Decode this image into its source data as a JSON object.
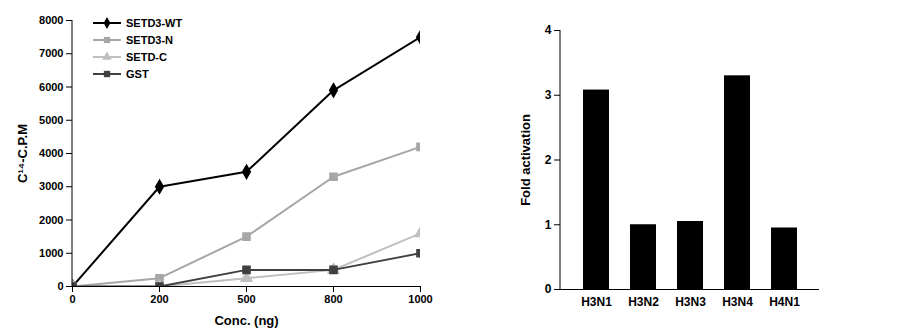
{
  "chart_data": [
    {
      "type": "line",
      "x_label": "Conc. (ng)",
      "y_label": "C¹⁴-C.P.M",
      "categories": [
        0,
        200,
        500,
        800,
        1000
      ],
      "series": [
        {
          "name": "SETD3-WT",
          "color": "#000000",
          "marker": "diamond",
          "values": [
            0,
            3000,
            3450,
            5900,
            7500
          ]
        },
        {
          "name": "SETD3-N",
          "color": "#a6a6a6",
          "marker": "square",
          "values": [
            0,
            250,
            1500,
            3300,
            4200
          ]
        },
        {
          "name": "SETD-C",
          "color": "#bfbfbf",
          "marker": "triangle",
          "values": [
            0,
            0,
            250,
            500,
            1600
          ]
        },
        {
          "name": "GST",
          "color": "#404040",
          "marker": "square",
          "values": [
            0,
            0,
            500,
            500,
            1000
          ]
        }
      ],
      "ylim": [
        0,
        8000
      ],
      "yticks": [
        0,
        1000,
        2000,
        3000,
        4000,
        5000,
        6000,
        7000,
        8000
      ],
      "legend": "top-left",
      "grid": false
    },
    {
      "type": "bar",
      "y_label": "Fold activation",
      "categories": [
        "H3N1",
        "H3N2",
        "H3N3",
        "H3N4",
        "H4N1"
      ],
      "values": [
        3.08,
        1.0,
        1.05,
        3.3,
        0.95
      ],
      "color": "#000000",
      "ylim": [
        0,
        4
      ],
      "yticks": [
        0,
        1,
        2,
        3,
        4
      ],
      "grid": false
    }
  ]
}
